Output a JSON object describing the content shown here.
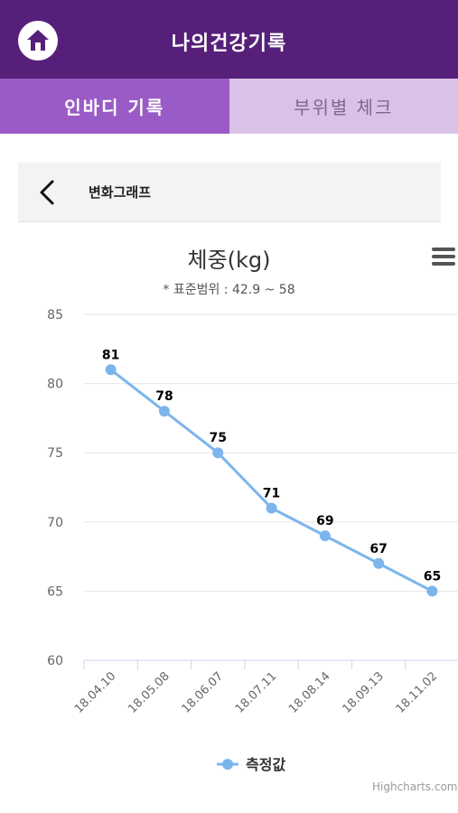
{
  "header": {
    "title": "나의건강기록"
  },
  "tabs": [
    {
      "label": "인바디 기록",
      "active": true
    },
    {
      "label": "부위별 체크",
      "active": false
    }
  ],
  "subheader": {
    "title": "변화그래프"
  },
  "chart_data": {
    "type": "line",
    "title": "체중(kg)",
    "subtitle": "* 표준범위 : 42.9 ~ 58",
    "categories": [
      "18.04.10",
      "18.05.08",
      "18.06.07",
      "18.07.11",
      "18.08.14",
      "18.09.13",
      "18.11.02"
    ],
    "series": [
      {
        "name": "측정값",
        "values": [
          81,
          78,
          75,
          71,
          69,
          67,
          65
        ],
        "color": "#7cb5ec"
      }
    ],
    "ylim": [
      60,
      85
    ],
    "yticks": [
      60,
      65,
      70,
      75,
      80,
      85
    ],
    "grid": true,
    "data_labels": true,
    "legend": "bottom-center",
    "credit": "Highcharts.com"
  },
  "colors": {
    "header": "#56207a",
    "tab_active": "#9a5bc6",
    "tab_inactive": "#d9c2e6"
  }
}
